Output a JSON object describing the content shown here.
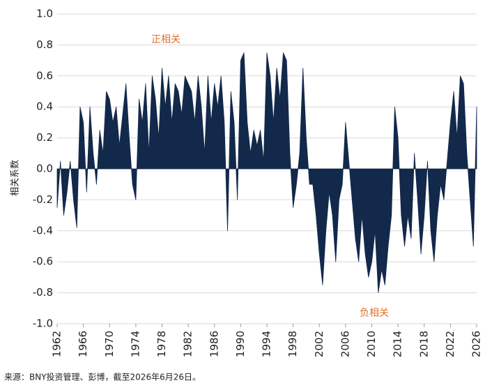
{
  "chart_data": {
    "type": "area",
    "y_label": "相关系数",
    "annotations": [
      "正相关",
      "负相关"
    ],
    "source": "来源：BNY投资管理、彭博，截至2026年6月26日。",
    "color": "#13294b",
    "grid": true,
    "xlim": [
      1962,
      2026
    ],
    "xticks": [
      1962,
      1966,
      1970,
      1974,
      1978,
      1982,
      1986,
      1990,
      1994,
      1998,
      2002,
      2006,
      2010,
      2014,
      2018,
      2022,
      2026
    ],
    "ylim": [
      -1,
      1
    ],
    "yticks": [
      {
        "value": -1,
        "label": "-1.0"
      },
      {
        "value": -0.8,
        "label": "-0.8"
      },
      {
        "value": -0.6,
        "label": "-0.6"
      },
      {
        "value": -0.4,
        "label": "-0.4"
      },
      {
        "value": -0.2,
        "label": "-0.2"
      },
      {
        "value": 0,
        "label": "0.0"
      },
      {
        "value": 0.2,
        "label": "0.2"
      },
      {
        "value": 0.4,
        "label": "0.4"
      },
      {
        "value": 0.6,
        "label": "0.6"
      },
      {
        "value": 0.8,
        "label": "0.8"
      },
      {
        "value": 1,
        "label": "1.0"
      }
    ],
    "x": [
      1962,
      1962.5,
      1963,
      1963.5,
      1964,
      1964.5,
      1965,
      1965.5,
      1966,
      1966.5,
      1967,
      1967.5,
      1968,
      1968.5,
      1969,
      1969.5,
      1970,
      1970.5,
      1971,
      1971.5,
      1972,
      1972.5,
      1973,
      1973.5,
      1974,
      1974.5,
      1975,
      1975.5,
      1976,
      1976.5,
      1977,
      1977.5,
      1978,
      1978.5,
      1979,
      1979.5,
      1980,
      1980.5,
      1981,
      1981.5,
      1982,
      1982.5,
      1983,
      1983.5,
      1984,
      1984.5,
      1985,
      1985.5,
      1986,
      1986.5,
      1987,
      1987.5,
      1988,
      1988.5,
      1989,
      1989.5,
      1990,
      1990.5,
      1991,
      1991.5,
      1992,
      1992.5,
      1993,
      1993.5,
      1994,
      1994.5,
      1995,
      1995.5,
      1996,
      1996.5,
      1997,
      1997.5,
      1998,
      1998.5,
      1999,
      1999.5,
      2000,
      2000.5,
      2001,
      2001.5,
      2002,
      2002.5,
      2003,
      2003.5,
      2004,
      2004.5,
      2005,
      2005.5,
      2006,
      2006.5,
      2007,
      2007.5,
      2008,
      2008.5,
      2009,
      2009.5,
      2010,
      2010.5,
      2011,
      2011.5,
      2012,
      2012.5,
      2013,
      2013.5,
      2014,
      2014.5,
      2015,
      2015.5,
      2016,
      2016.5,
      2017,
      2017.5,
      2018,
      2018.5,
      2019,
      2019.5,
      2020,
      2020.5,
      2021,
      2021.5,
      2022,
      2022.5,
      2023,
      2023.5,
      2024,
      2024.5,
      2025,
      2025.5,
      2026
    ],
    "values": [
      -0.25,
      0.05,
      -0.3,
      -0.15,
      0.05,
      -0.2,
      -0.38,
      0.4,
      0.3,
      -0.15,
      0.4,
      0.1,
      -0.1,
      0.25,
      0.1,
      0.5,
      0.45,
      0.3,
      0.4,
      0.15,
      0.35,
      0.55,
      0.2,
      -0.1,
      -0.2,
      0.45,
      0.3,
      0.55,
      0.1,
      0.6,
      0.45,
      0.2,
      0.65,
      0.4,
      0.6,
      0.3,
      0.55,
      0.5,
      0.35,
      0.6,
      0.55,
      0.5,
      0.3,
      0.6,
      0.4,
      0.1,
      0.6,
      0.3,
      0.55,
      0.4,
      0.6,
      0.3,
      -0.4,
      0.5,
      0.3,
      -0.2,
      0.7,
      0.75,
      0.3,
      0.1,
      0.25,
      0.15,
      0.25,
      0.05,
      0.75,
      0.6,
      0.3,
      0.65,
      0.45,
      0.75,
      0.7,
      0.1,
      -0.25,
      -0.1,
      0.1,
      0.65,
      0.2,
      -0.1,
      -0.1,
      -0.3,
      -0.55,
      -0.75,
      -0.4,
      -0.15,
      -0.3,
      -0.6,
      -0.2,
      -0.1,
      0.3,
      0.05,
      -0.2,
      -0.45,
      -0.6,
      -0.3,
      -0.55,
      -0.7,
      -0.6,
      -0.4,
      -0.8,
      -0.65,
      -0.75,
      -0.5,
      -0.3,
      0.4,
      0.2,
      -0.3,
      -0.5,
      -0.3,
      -0.45,
      0.1,
      -0.2,
      -0.55,
      -0.3,
      0.05,
      -0.4,
      -0.6,
      -0.3,
      -0.1,
      -0.2,
      0.05,
      0.3,
      0.5,
      0.2,
      0.6,
      0.55,
      0.1,
      -0.2,
      -0.5,
      0.4
    ]
  }
}
